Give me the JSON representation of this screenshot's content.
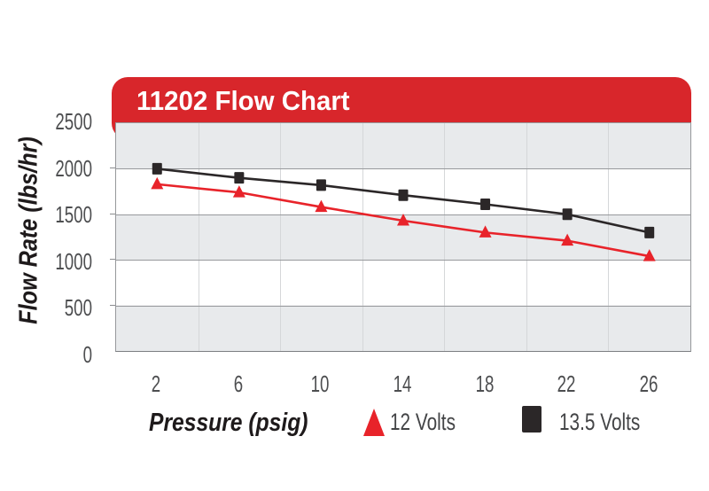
{
  "header": {
    "title": "11202 Flow Chart"
  },
  "colors": {
    "header_red": "#d8262b",
    "series_12v": "#e8232a",
    "series_135v": "#2b2728",
    "band_gray": "#e8eaec",
    "axis_text_gray": "#4d4e50"
  },
  "y_axis": {
    "title": "Flow Rate (lbs/hr)",
    "tick_labels": [
      "2500",
      "2000",
      "1500",
      "1000",
      "500",
      "0"
    ]
  },
  "x_axis": {
    "title": "Pressure (psig)",
    "tick_labels": [
      "2",
      "6",
      "10",
      "14",
      "18",
      "22",
      "26"
    ]
  },
  "legend": {
    "items": [
      {
        "label": "12 Volts",
        "marker": "triangle"
      },
      {
        "label": "13.5 Volts",
        "marker": "square"
      }
    ]
  },
  "chart_data": {
    "type": "line",
    "title": "11202 Flow Chart",
    "xlabel": "Pressure (psig)",
    "ylabel": "Flow Rate (lbs/hr)",
    "x": [
      2,
      6,
      10,
      14,
      18,
      22,
      26
    ],
    "series": [
      {
        "name": "13.5 Volts",
        "marker": "square",
        "color": "#2b2728",
        "values": [
          2000,
          1900,
          1820,
          1710,
          1610,
          1500,
          1300
        ]
      },
      {
        "name": "12 Volts",
        "marker": "triangle",
        "color": "#e8232a",
        "values": [
          1830,
          1740,
          1580,
          1430,
          1300,
          1210,
          1040
        ]
      }
    ],
    "ylim": [
      0,
      2500
    ],
    "y_tick_step": 500,
    "grid": {
      "horizontal": true,
      "vertical": true,
      "bands": "alternating-gray"
    },
    "legend_position": "bottom"
  }
}
